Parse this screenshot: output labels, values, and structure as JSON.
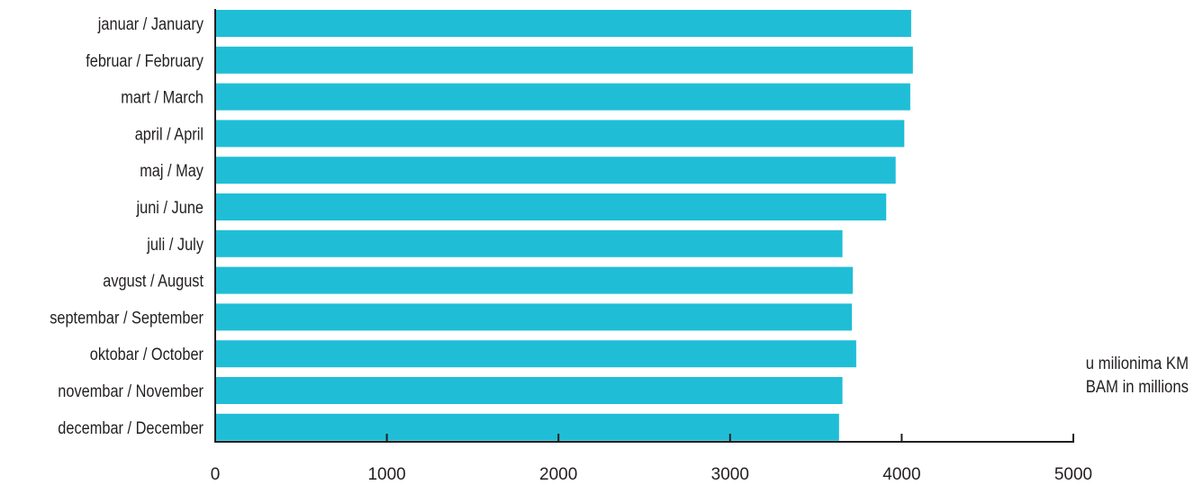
{
  "chart_data": {
    "type": "bar",
    "orientation": "horizontal",
    "categories": [
      "januar / January",
      "februar / February",
      "mart / March",
      "april / April",
      "maj / May",
      "juni / June",
      "juli / July",
      "avgust / August",
      "septembar / September",
      "oktobar / October",
      "novembar / November",
      "decembar / December"
    ],
    "values": [
      4055,
      4065,
      4050,
      4015,
      3965,
      3910,
      3655,
      3715,
      3710,
      3735,
      3655,
      3635
    ],
    "xlim": [
      0,
      5000
    ],
    "xticks": [
      "0",
      "1000",
      "2000",
      "3000",
      "4000",
      "5000"
    ],
    "grid": false,
    "bar_color": "#1fbed6",
    "axis_color": "#231f20",
    "unit_note": {
      "line1": "u milionima KM",
      "line2": "BAM in millions"
    }
  }
}
